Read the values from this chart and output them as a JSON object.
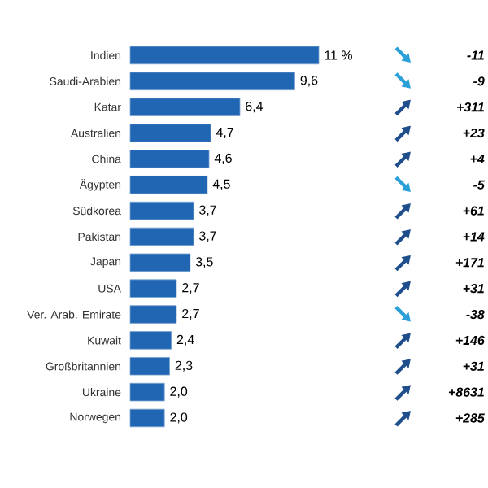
{
  "chart_data": {
    "type": "bar",
    "orientation": "horizontal",
    "color": "#2166b3",
    "categories": [
      "Indien",
      "Saudi-Arabien",
      "Katar",
      "Australien",
      "China",
      "Ägypten",
      "Südkorea",
      "Pakistan",
      "Japan",
      "USA",
      "Ver. Arab. Emirate",
      "Kuwait",
      "Großbritannien",
      "Ukraine",
      "Norwegen"
    ],
    "values": [
      11,
      9.6,
      6.4,
      4.7,
      4.6,
      4.5,
      3.7,
      3.7,
      3.5,
      2.7,
      2.7,
      2.4,
      2.3,
      2.0,
      2.0
    ],
    "value_labels": [
      "11 %",
      "9,6",
      "6,4",
      "4,7",
      "4,6",
      "4,5",
      "3,7",
      "3,7",
      "3,5",
      "2,7",
      "2,7",
      "2,4",
      "2,3",
      "2,0",
      "2,0"
    ],
    "annotations": [
      "-11",
      "-9",
      "+311",
      "+23",
      "+4",
      "-5",
      "+61",
      "+14",
      "+171",
      "+31",
      "-38",
      "+146",
      "+31",
      "+8631",
      "+285"
    ]
  }
}
